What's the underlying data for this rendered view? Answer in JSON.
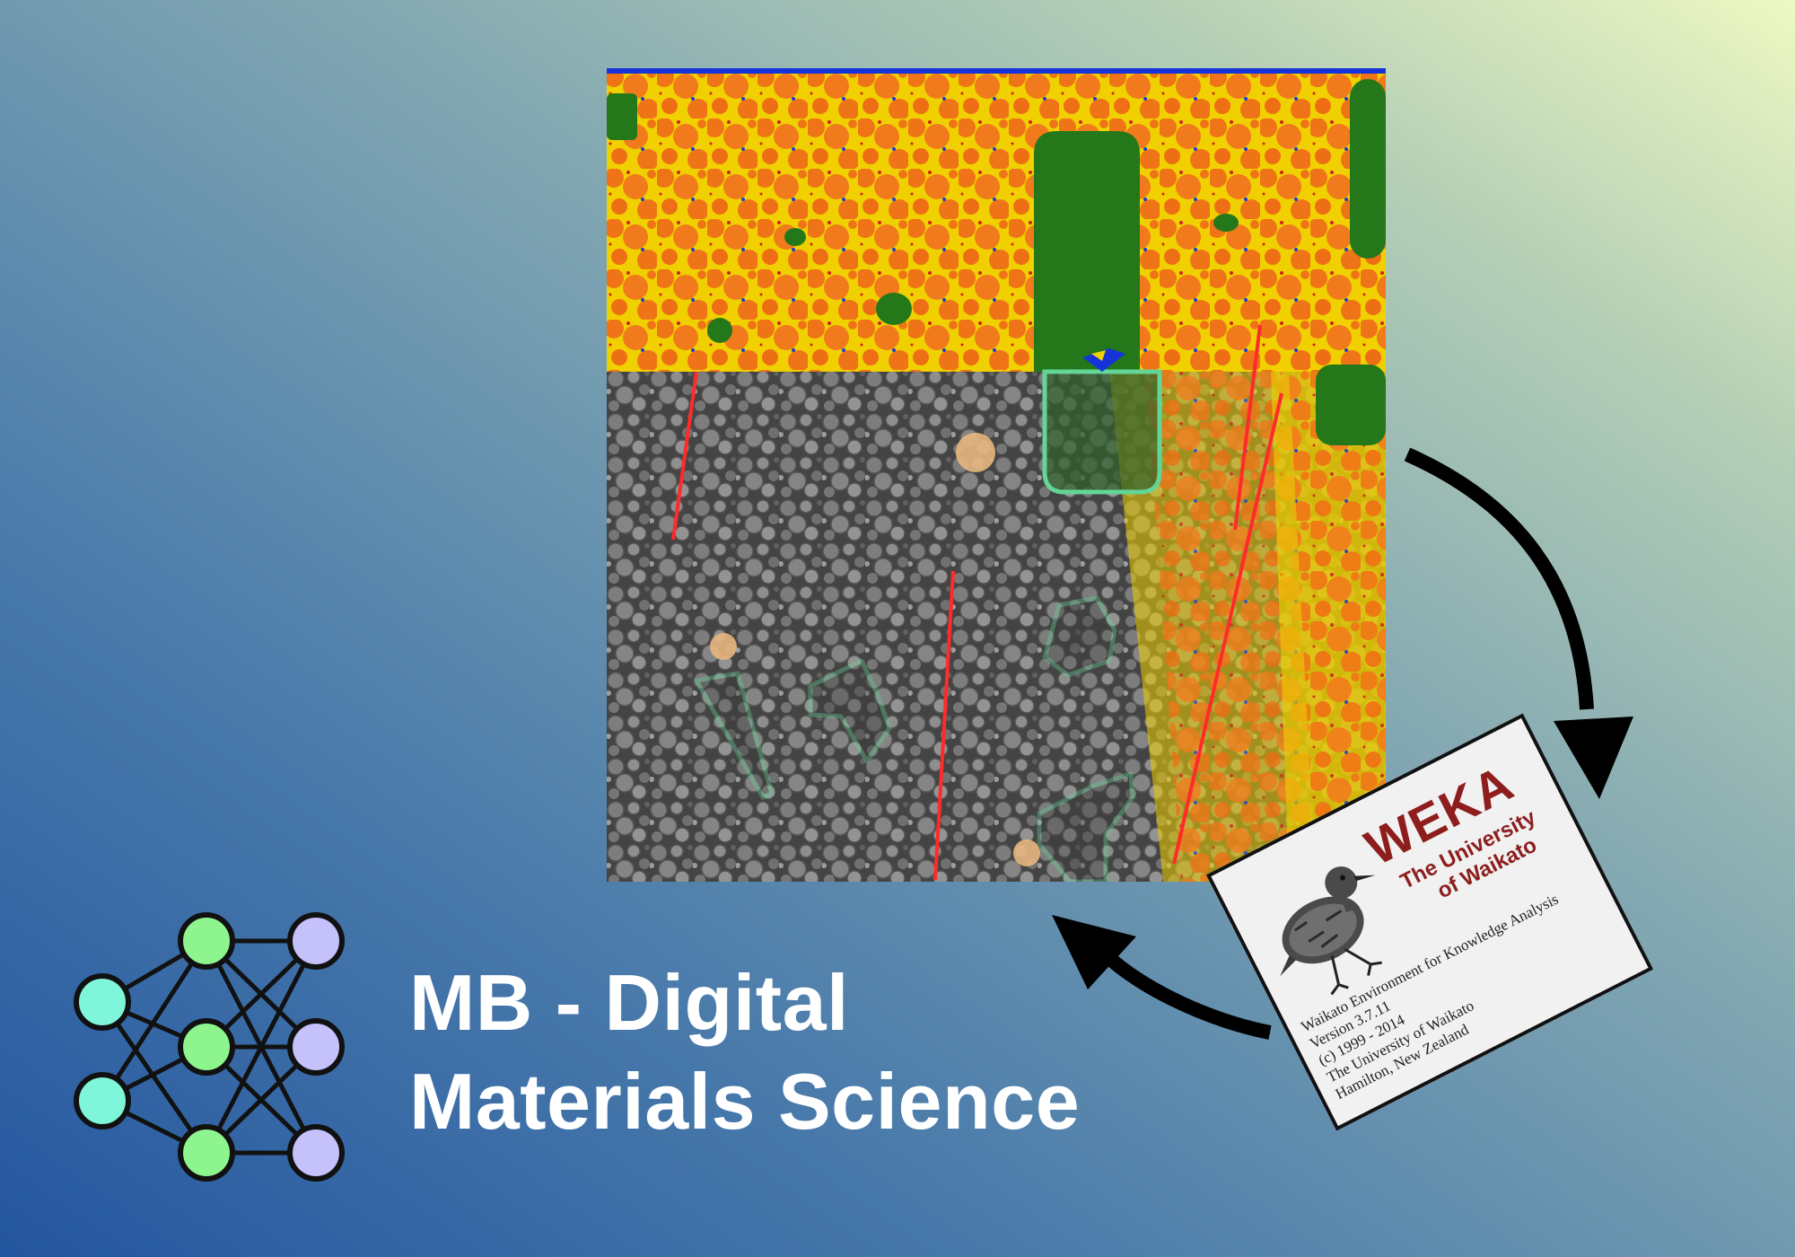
{
  "title": {
    "line1": "MB - Digital",
    "line2": "Materials Science"
  },
  "weka_card": {
    "logo": "WEKA",
    "university_line1": "The University",
    "university_line2": "of Waikato",
    "info_lines": [
      "Waikato Environment for Knowledge Analysis",
      "Version 3.7.11",
      "(c) 1999 - 2014",
      "The University of Waikato",
      "Hamilton, New Zealand"
    ]
  },
  "icons": {
    "network": "neural-network-icon",
    "arrows": "cycle-arrow-icon",
    "bird": "weka-bird-icon"
  },
  "colors": {
    "gradient_start": "#2456a0",
    "gradient_end": "#eef8c2",
    "input_nodes": "#7ff5d9",
    "hidden_nodes": "#8ef58e",
    "output_nodes": "#c4c1fb",
    "segment_yellow": "#f0d000",
    "segment_orange": "#ef7418",
    "segment_green": "#24781a",
    "annotation_green": "#63d596",
    "annotation_red": "#ff2b2b",
    "weka_red": "#8e1e1e"
  }
}
